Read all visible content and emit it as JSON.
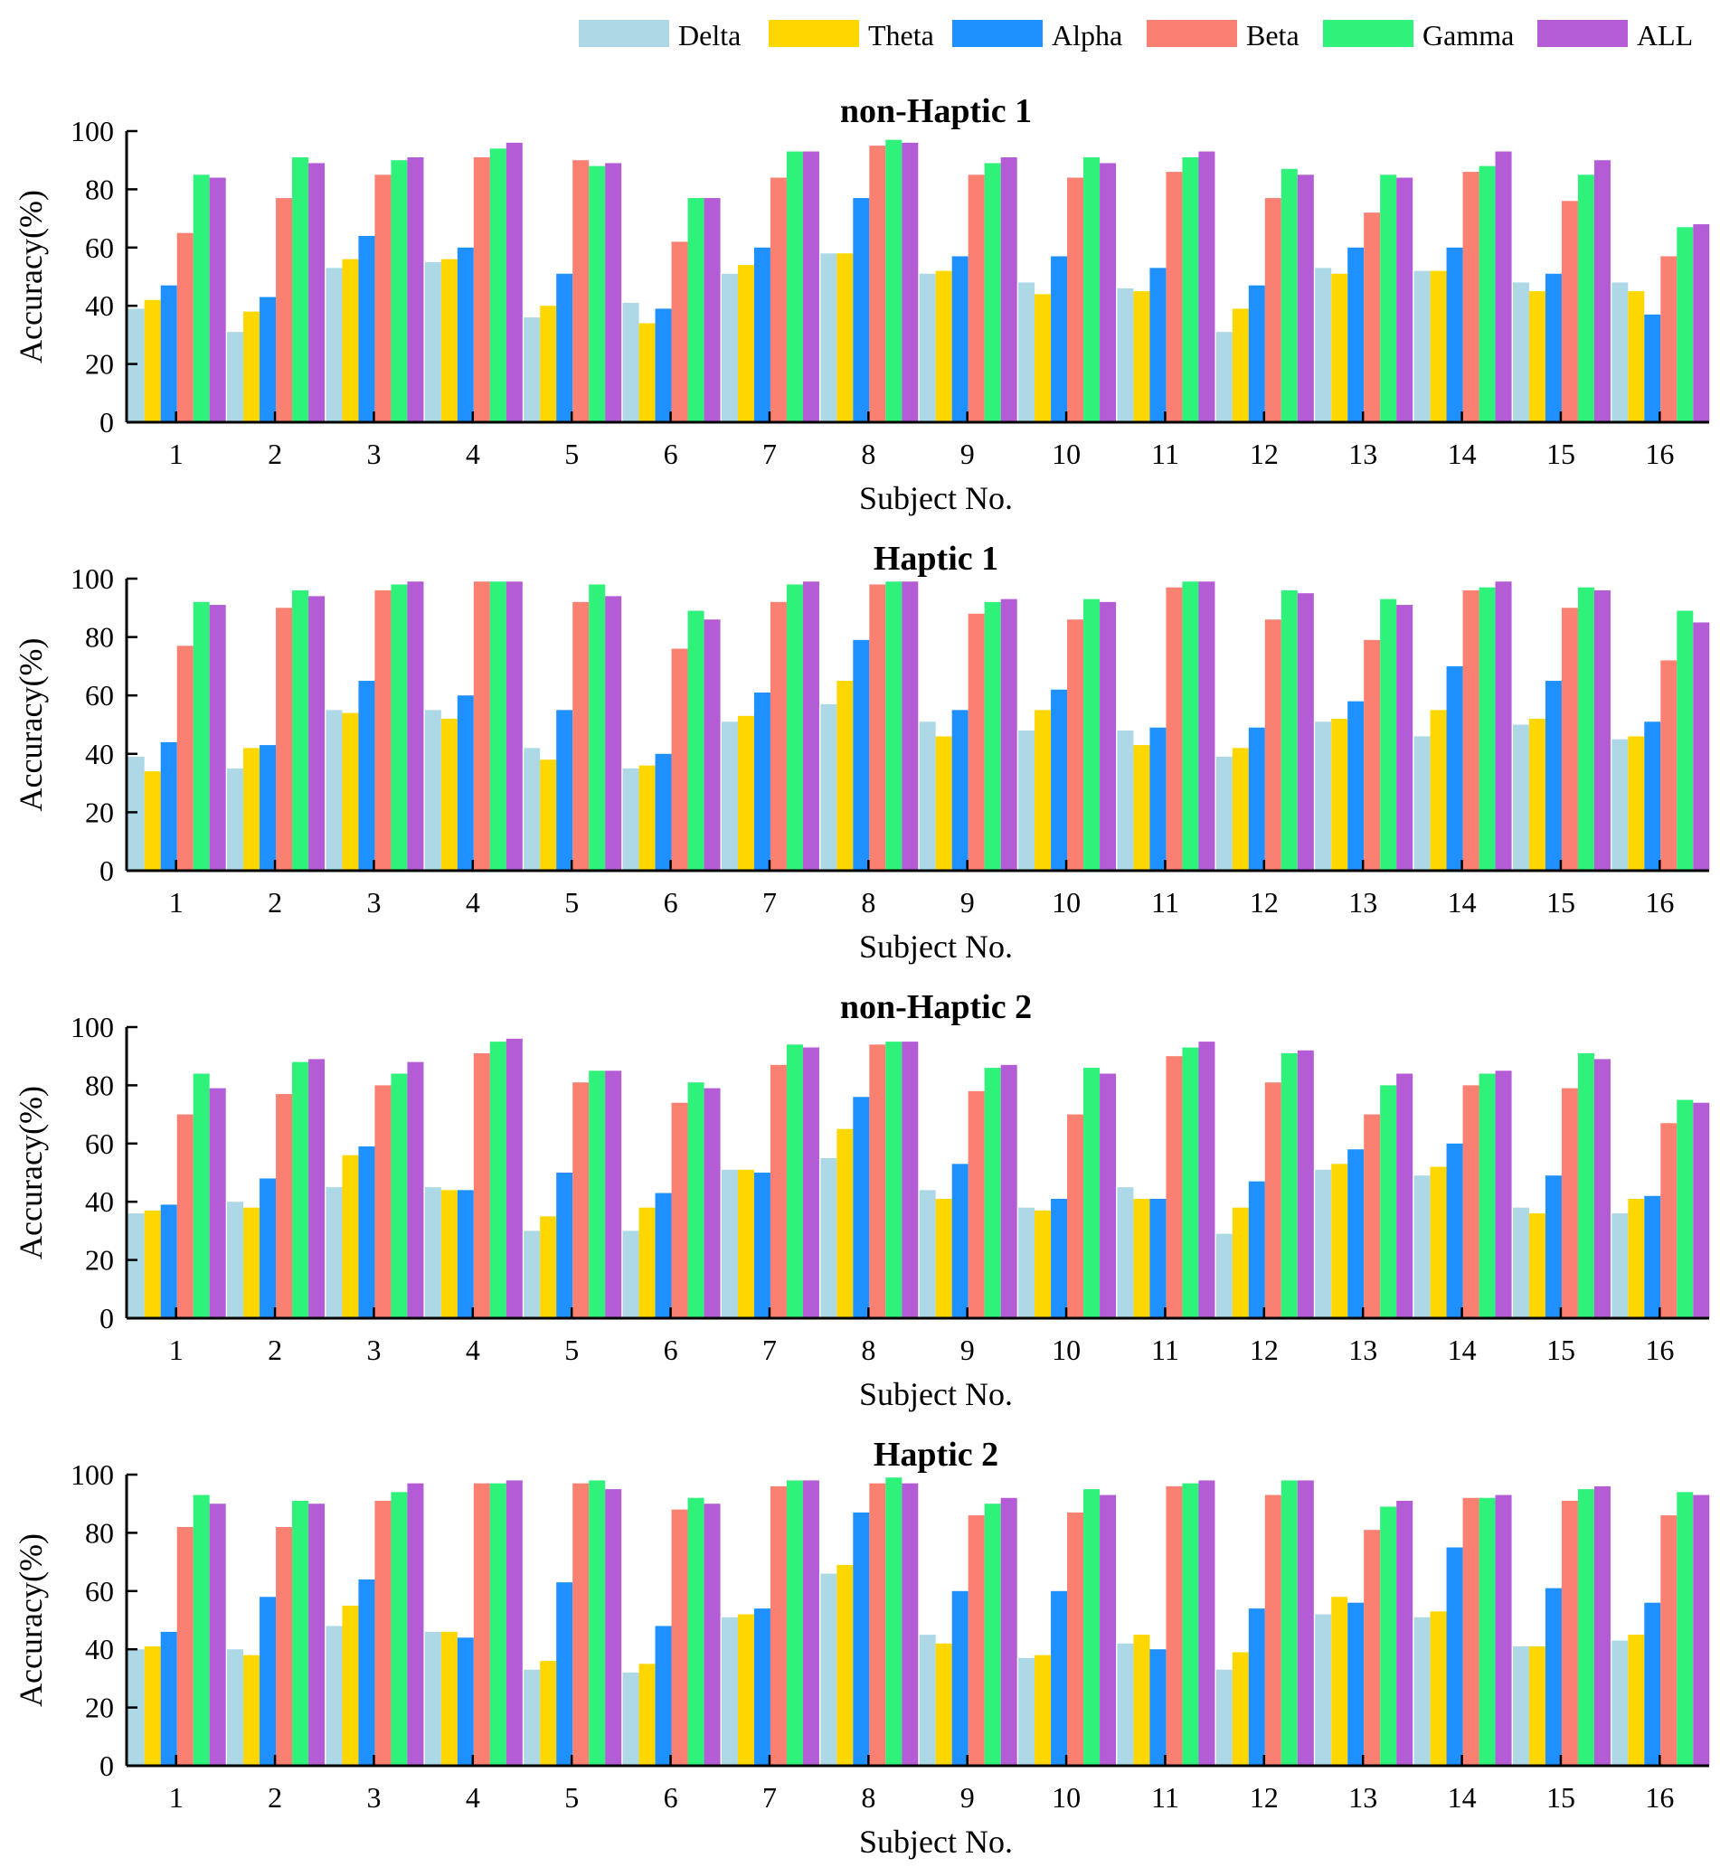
{
  "legend": [
    {
      "name": "Delta",
      "color": "#ADD8E6"
    },
    {
      "name": "Theta",
      "color": "#FFD700"
    },
    {
      "name": "Alpha",
      "color": "#1E90FF"
    },
    {
      "name": "Beta",
      "color": "#FA8072"
    },
    {
      "name": "Gamma",
      "color": "#2EF27A"
    },
    {
      "name": "ALL",
      "color": "#B45BD6"
    }
  ],
  "chart_data": [
    {
      "type": "bar",
      "title": "non-Haptic 1",
      "xlabel": "Subject No.",
      "ylabel": "Accuracy(%)",
      "ylim": [
        0,
        100
      ],
      "yticks": [
        0,
        20,
        40,
        60,
        80,
        100
      ],
      "categories": [
        "1",
        "2",
        "3",
        "4",
        "5",
        "6",
        "7",
        "8",
        "9",
        "10",
        "11",
        "12",
        "13",
        "14",
        "15",
        "16"
      ],
      "series": [
        {
          "name": "Delta",
          "color": "#ADD8E6",
          "values": [
            39,
            31,
            53,
            55,
            36,
            41,
            51,
            58,
            51,
            48,
            46,
            31,
            53,
            52,
            48,
            48
          ]
        },
        {
          "name": "Theta",
          "color": "#FFD700",
          "values": [
            42,
            38,
            56,
            56,
            40,
            34,
            54,
            58,
            52,
            44,
            45,
            39,
            51,
            52,
            45,
            45
          ]
        },
        {
          "name": "Alpha",
          "color": "#1E90FF",
          "values": [
            47,
            43,
            64,
            60,
            51,
            39,
            60,
            77,
            57,
            57,
            53,
            47,
            60,
            60,
            51,
            37
          ]
        },
        {
          "name": "Beta",
          "color": "#FA8072",
          "values": [
            65,
            77,
            85,
            91,
            90,
            62,
            84,
            95,
            85,
            84,
            86,
            77,
            72,
            86,
            76,
            57
          ]
        },
        {
          "name": "Gamma",
          "color": "#2EF27A",
          "values": [
            85,
            91,
            90,
            94,
            88,
            77,
            93,
            97,
            89,
            91,
            91,
            87,
            85,
            88,
            85,
            67
          ]
        },
        {
          "name": "ALL",
          "color": "#B45BD6",
          "values": [
            84,
            89,
            91,
            96,
            89,
            77,
            93,
            96,
            91,
            89,
            93,
            85,
            84,
            93,
            90,
            68
          ]
        }
      ]
    },
    {
      "type": "bar",
      "title": "Haptic 1",
      "xlabel": "Subject No.",
      "ylabel": "Accuracy(%)",
      "ylim": [
        0,
        100
      ],
      "yticks": [
        0,
        20,
        40,
        60,
        80,
        100
      ],
      "categories": [
        "1",
        "2",
        "3",
        "4",
        "5",
        "6",
        "7",
        "8",
        "9",
        "10",
        "11",
        "12",
        "13",
        "14",
        "15",
        "16"
      ],
      "series": [
        {
          "name": "Delta",
          "color": "#ADD8E6",
          "values": [
            39,
            35,
            55,
            55,
            42,
            35,
            51,
            57,
            51,
            48,
            48,
            39,
            51,
            46,
            50,
            45
          ]
        },
        {
          "name": "Theta",
          "color": "#FFD700",
          "values": [
            34,
            42,
            54,
            52,
            38,
            36,
            53,
            65,
            46,
            55,
            43,
            42,
            52,
            55,
            52,
            46
          ]
        },
        {
          "name": "Alpha",
          "color": "#1E90FF",
          "values": [
            44,
            43,
            65,
            60,
            55,
            40,
            61,
            79,
            55,
            62,
            49,
            49,
            58,
            70,
            65,
            51
          ]
        },
        {
          "name": "Beta",
          "color": "#FA8072",
          "values": [
            77,
            90,
            96,
            99,
            92,
            76,
            92,
            98,
            88,
            86,
            97,
            86,
            79,
            96,
            90,
            72
          ]
        },
        {
          "name": "Gamma",
          "color": "#2EF27A",
          "values": [
            92,
            96,
            98,
            99,
            98,
            89,
            98,
            99,
            92,
            93,
            99,
            96,
            93,
            97,
            97,
            89
          ]
        },
        {
          "name": "ALL",
          "color": "#B45BD6",
          "values": [
            91,
            94,
            99,
            99,
            94,
            86,
            99,
            99,
            93,
            92,
            99,
            95,
            91,
            99,
            96,
            85
          ]
        }
      ]
    },
    {
      "type": "bar",
      "title": "non-Haptic 2",
      "xlabel": "Subject No.",
      "ylabel": "Accuracy(%)",
      "ylim": [
        0,
        100
      ],
      "yticks": [
        0,
        20,
        40,
        60,
        80,
        100
      ],
      "categories": [
        "1",
        "2",
        "3",
        "4",
        "5",
        "6",
        "7",
        "8",
        "9",
        "10",
        "11",
        "12",
        "13",
        "14",
        "15",
        "16"
      ],
      "series": [
        {
          "name": "Delta",
          "color": "#ADD8E6",
          "values": [
            36,
            40,
            45,
            45,
            30,
            30,
            51,
            55,
            44,
            38,
            45,
            29,
            51,
            49,
            38,
            36
          ]
        },
        {
          "name": "Theta",
          "color": "#FFD700",
          "values": [
            37,
            38,
            56,
            44,
            35,
            38,
            51,
            65,
            41,
            37,
            41,
            38,
            53,
            52,
            36,
            41
          ]
        },
        {
          "name": "Alpha",
          "color": "#1E90FF",
          "values": [
            39,
            48,
            59,
            44,
            50,
            43,
            50,
            76,
            53,
            41,
            41,
            47,
            58,
            60,
            49,
            42
          ]
        },
        {
          "name": "Beta",
          "color": "#FA8072",
          "values": [
            70,
            77,
            80,
            91,
            81,
            74,
            87,
            94,
            78,
            70,
            90,
            81,
            70,
            80,
            79,
            67
          ]
        },
        {
          "name": "Gamma",
          "color": "#2EF27A",
          "values": [
            84,
            88,
            84,
            95,
            85,
            81,
            94,
            95,
            86,
            86,
            93,
            91,
            80,
            84,
            91,
            75
          ]
        },
        {
          "name": "ALL",
          "color": "#B45BD6",
          "values": [
            79,
            89,
            88,
            96,
            85,
            79,
            93,
            95,
            87,
            84,
            95,
            92,
            84,
            85,
            89,
            74
          ]
        }
      ]
    },
    {
      "type": "bar",
      "title": "Haptic 2",
      "xlabel": "Subject No.",
      "ylabel": "Accuracy(%)",
      "ylim": [
        0,
        100
      ],
      "yticks": [
        0,
        20,
        40,
        60,
        80,
        100
      ],
      "categories": [
        "1",
        "2",
        "3",
        "4",
        "5",
        "6",
        "7",
        "8",
        "9",
        "10",
        "11",
        "12",
        "13",
        "14",
        "15",
        "16"
      ],
      "series": [
        {
          "name": "Delta",
          "color": "#ADD8E6",
          "values": [
            40,
            40,
            48,
            46,
            33,
            32,
            51,
            66,
            45,
            37,
            42,
            33,
            52,
            51,
            41,
            43
          ]
        },
        {
          "name": "Theta",
          "color": "#FFD700",
          "values": [
            41,
            38,
            55,
            46,
            36,
            35,
            52,
            69,
            42,
            38,
            45,
            39,
            58,
            53,
            41,
            45
          ]
        },
        {
          "name": "Alpha",
          "color": "#1E90FF",
          "values": [
            46,
            58,
            64,
            44,
            63,
            48,
            54,
            87,
            60,
            60,
            40,
            54,
            56,
            75,
            61,
            56
          ]
        },
        {
          "name": "Beta",
          "color": "#FA8072",
          "values": [
            82,
            82,
            91,
            97,
            97,
            88,
            96,
            97,
            86,
            87,
            96,
            93,
            81,
            92,
            91,
            86
          ]
        },
        {
          "name": "Gamma",
          "color": "#2EF27A",
          "values": [
            93,
            91,
            94,
            97,
            98,
            92,
            98,
            99,
            90,
            95,
            97,
            98,
            89,
            92,
            95,
            94
          ]
        },
        {
          "name": "ALL",
          "color": "#B45BD6",
          "values": [
            90,
            90,
            97,
            98,
            95,
            90,
            98,
            97,
            92,
            93,
            98,
            98,
            91,
            93,
            96,
            93
          ]
        }
      ]
    }
  ]
}
